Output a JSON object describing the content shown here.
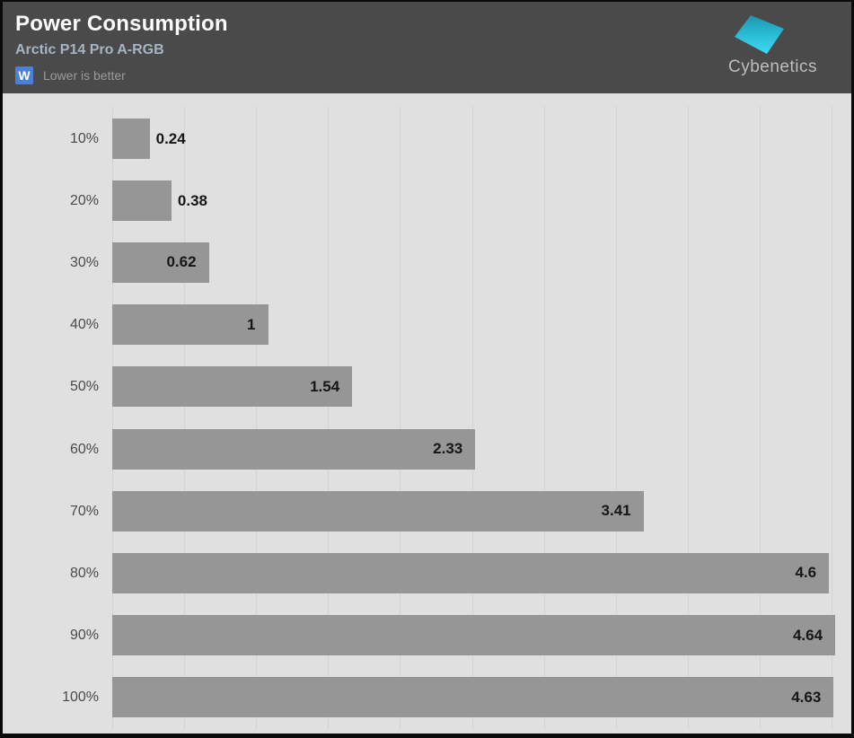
{
  "header": {
    "title": "Power Consumption",
    "subtitle": "Arctic P14 Pro A-RGB",
    "unit_badge": "W",
    "note": "Lower is better",
    "logo_text": "Cybenetics"
  },
  "colors": {
    "header_bg": "#4a4a4a",
    "title": "#ffffff",
    "subtitle": "#a6b5c4",
    "badge_bg": "#4a80d9",
    "note": "#9b9b9b",
    "chart_bg": "#e0e0e0",
    "gridline": "#d3d3d3",
    "bar": "#969696",
    "value_label": "#161616",
    "category_label": "#4a4a4a",
    "logo_mark_top": "#1e94ac",
    "logo_mark_bottom": "#41d9f2",
    "logo_text": "#bdbdbd"
  },
  "chart_data": {
    "type": "bar",
    "orientation": "horizontal",
    "title": "Power Consumption",
    "subtitle": "Arctic P14 Pro A-RGB",
    "unit": "W",
    "note": "Lower is better",
    "categories": [
      "10%",
      "20%",
      "30%",
      "40%",
      "50%",
      "60%",
      "70%",
      "80%",
      "90%",
      "100%"
    ],
    "values": [
      0.24,
      0.38,
      0.62,
      1,
      1.54,
      2.33,
      3.41,
      4.6,
      4.64,
      4.63
    ],
    "xlim": [
      0,
      4.64
    ],
    "x_tick_labels_shown": false,
    "gridline_count": 11,
    "grid": "vertical",
    "legend": "none",
    "value_labels_shown": true
  }
}
